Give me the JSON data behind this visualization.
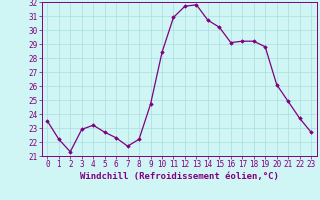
{
  "x": [
    0,
    1,
    2,
    3,
    4,
    5,
    6,
    7,
    8,
    9,
    10,
    11,
    12,
    13,
    14,
    15,
    16,
    17,
    18,
    19,
    20,
    21,
    22,
    23
  ],
  "y": [
    23.5,
    22.2,
    21.3,
    22.9,
    23.2,
    22.7,
    22.3,
    21.7,
    22.2,
    24.7,
    28.4,
    30.9,
    31.7,
    31.8,
    30.7,
    30.2,
    29.1,
    29.2,
    29.2,
    28.8,
    26.1,
    24.9,
    23.7,
    22.7
  ],
  "ylim": [
    21,
    32
  ],
  "xlim": [
    -0.5,
    23.5
  ],
  "yticks": [
    21,
    22,
    23,
    24,
    25,
    26,
    27,
    28,
    29,
    30,
    31,
    32
  ],
  "xticks": [
    0,
    1,
    2,
    3,
    4,
    5,
    6,
    7,
    8,
    9,
    10,
    11,
    12,
    13,
    14,
    15,
    16,
    17,
    18,
    19,
    20,
    21,
    22,
    23
  ],
  "xlabel": "Windchill (Refroidissement éolien,°C)",
  "line_color": "#800080",
  "marker": "D",
  "marker_size": 1.8,
  "bg_color": "#cff5f5",
  "grid_color": "#aadddd",
  "tick_fontsize": 5.5,
  "xlabel_fontsize": 6.5,
  "spine_color": "#800080"
}
